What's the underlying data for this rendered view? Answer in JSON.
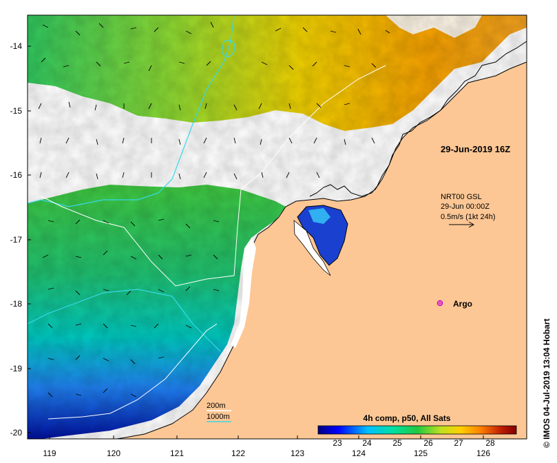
{
  "map": {
    "timestamp": "29-Jun-2019 16Z",
    "current_product": "NRT00 GSL",
    "current_date": "29-Jun 00:00Z",
    "vector_scale": "0.5m/s (1kt 24h)",
    "argo_label": "Argo",
    "credit": "© IMOS 04-Jul-2019 13:04 Hobart",
    "isobaths": [
      {
        "label": "200m",
        "color": "#ffffff"
      },
      {
        "label": "1000m",
        "color": "#38d8e8"
      }
    ],
    "colorbar": {
      "title": "4h comp, p50, All Sats",
      "ticks": [
        "23",
        "24",
        "25",
        "26",
        "27",
        "28"
      ],
      "vmin": 22.6,
      "vmax": 28.6,
      "colors": [
        "#000080",
        "#0000ff",
        "#00c0ff",
        "#00e0a0",
        "#20c840",
        "#c0e020",
        "#ffd000",
        "#ff8000",
        "#c02000",
        "#800000"
      ]
    },
    "lon_ticks": [
      "119",
      "120",
      "121",
      "122",
      "123",
      "124",
      "125",
      "126"
    ],
    "lat_ticks": [
      "-14",
      "-15",
      "-16",
      "-17",
      "-18",
      "-19",
      "-20"
    ],
    "colors": {
      "land": "#fcc795",
      "coast": "#000000",
      "cloud": "#ffffff",
      "argo": "#d000d0"
    }
  }
}
